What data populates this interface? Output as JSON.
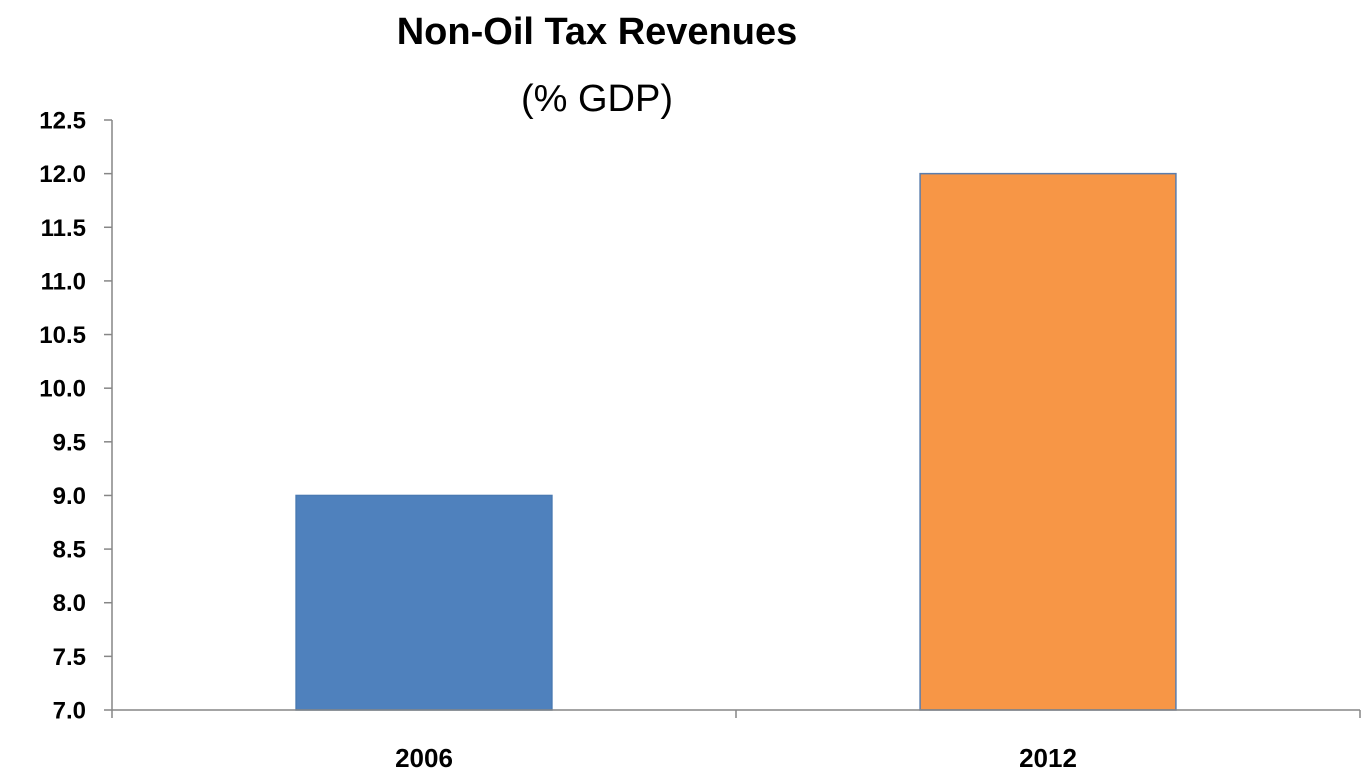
{
  "chart_data": {
    "type": "bar",
    "title": "Non-Oil Tax Revenues",
    "subtitle": "(% GDP)",
    "categories": [
      "2006",
      "2012"
    ],
    "values": [
      9.0,
      12.0
    ],
    "colors": [
      "#4f81bd",
      "#f79646"
    ],
    "bar_border_colors": [
      "#4a7ab3",
      "#5a7dad"
    ],
    "ylim": [
      7.0,
      12.5
    ],
    "yticks": [
      "7.0",
      "7.5",
      "8.0",
      "8.5",
      "9.0",
      "9.5",
      "10.0",
      "10.5",
      "11.0",
      "11.5",
      "12.0",
      "12.5"
    ],
    "xlabel": "",
    "ylabel": "",
    "grid": false,
    "legend": "none"
  }
}
